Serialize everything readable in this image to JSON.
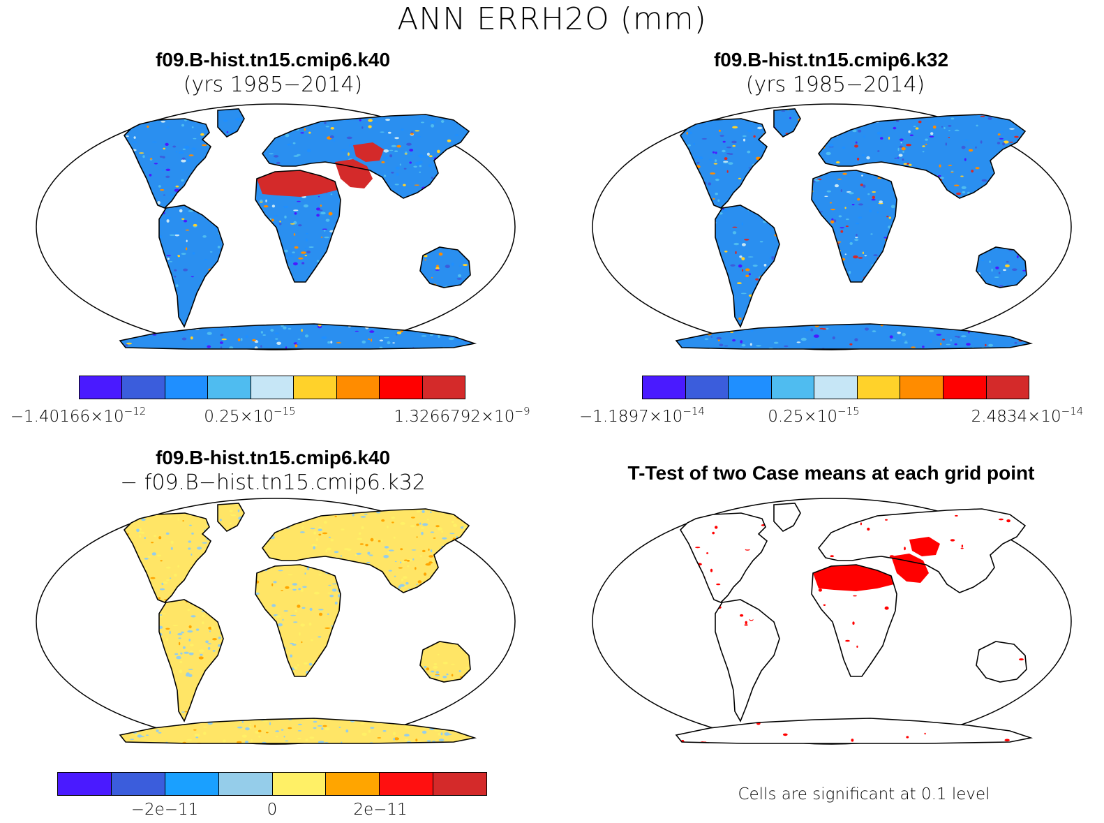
{
  "figure": {
    "title": "ANN ERRH2O (mm)",
    "colors": {
      "land_blue": "#2a8ff0",
      "sig_red": "#ff0000",
      "diff_yellow": "#ffe566",
      "diff_lightblue": "#8fc9ea"
    }
  },
  "panels": [
    {
      "id": "case1",
      "title": "f09.B-hist.tn15.cmip6.k40",
      "subtitle": "(yrs 1985−2014)",
      "colorbar": {
        "colors": [
          "#4a1aff",
          "#3b5ddc",
          "#1f8fff",
          "#4fbcf0",
          "#c6e6f6",
          "#ffd22a",
          "#ff8c00",
          "#ff0000",
          "#d42a2a"
        ],
        "labels": [
          {
            "mant": "−1.40166×10",
            "exp": "−12"
          },
          {
            "mant": "0.25×10",
            "exp": "−15"
          },
          {
            "mant": "1.3266792×10",
            "exp": "−9"
          }
        ]
      }
    },
    {
      "id": "case2",
      "title": "f09.B-hist.tn15.cmip6.k32",
      "subtitle": "(yrs 1985−2014)",
      "colorbar": {
        "colors": [
          "#4a1aff",
          "#3b5ddc",
          "#1f8fff",
          "#4fbcf0",
          "#c6e6f6",
          "#ffd22a",
          "#ff8c00",
          "#ff0000",
          "#d42a2a"
        ],
        "labels": [
          {
            "mant": "−1.1897×10",
            "exp": "−14"
          },
          {
            "mant": "0.25×10",
            "exp": "−15"
          },
          {
            "mant": "2.4834×10",
            "exp": "−14"
          }
        ]
      }
    },
    {
      "id": "diff",
      "title": "f09.B-hist.tn15.cmip6.k40",
      "subtitle": "− f09.B−hist.tn15.cmip6.k32",
      "colorbar": {
        "colors": [
          "#4a1aff",
          "#3b5ddc",
          "#1aa0ff",
          "#95cdea",
          "#fff066",
          "#ffa500",
          "#ff1010",
          "#d42a2a"
        ],
        "labels": [
          "−2e−11",
          "0",
          "2e−11"
        ]
      }
    },
    {
      "id": "ttest",
      "title": "T-Test of two Case means at each grid point",
      "footnote": "Cells are significant at 0.1 level"
    }
  ]
}
